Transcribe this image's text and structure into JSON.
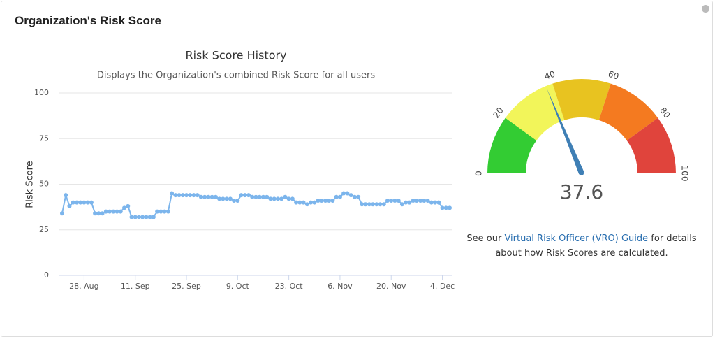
{
  "header": {
    "title": "Organization's Risk Score"
  },
  "chart_data": [
    {
      "type": "line",
      "title": "Risk Score History",
      "subtitle": "Displays the Organization's combined Risk Score for all users",
      "y_label": "Risk Score",
      "categories": [
        null,
        null,
        null,
        null,
        null,
        null,
        "28. Aug",
        null,
        null,
        null,
        null,
        null,
        null,
        null,
        null,
        null,
        null,
        null,
        null,
        null,
        "11. Sep",
        null,
        null,
        null,
        null,
        null,
        null,
        null,
        null,
        null,
        null,
        null,
        null,
        null,
        "25. Sep",
        null,
        null,
        null,
        null,
        null,
        null,
        null,
        null,
        null,
        null,
        null,
        null,
        null,
        "9. Oct",
        null,
        null,
        null,
        null,
        null,
        null,
        null,
        null,
        null,
        null,
        null,
        null,
        null,
        "23. Oct",
        null,
        null,
        null,
        null,
        null,
        null,
        null,
        null,
        null,
        null,
        null,
        null,
        null,
        "6. Nov",
        null,
        null,
        null,
        null,
        null,
        null,
        null,
        null,
        null,
        null,
        null,
        null,
        null,
        "20. Nov",
        null,
        null,
        null,
        null,
        null,
        null,
        null,
        null,
        null,
        null,
        null,
        null,
        null,
        "4. Dec",
        null,
        null
      ],
      "values": [
        34,
        44,
        38,
        40,
        40,
        40,
        40,
        40,
        40,
        34,
        34,
        34,
        35,
        35,
        35,
        35,
        35,
        37,
        38,
        32,
        32,
        32,
        32,
        32,
        32,
        32,
        35,
        35,
        35,
        35,
        45,
        44,
        44,
        44,
        44,
        44,
        44,
        44,
        43,
        43,
        43,
        43,
        43,
        42,
        42,
        42,
        42,
        41,
        41,
        44,
        44,
        44,
        43,
        43,
        43,
        43,
        43,
        42,
        42,
        42,
        42,
        43,
        42,
        42,
        40,
        40,
        40,
        39,
        40,
        40,
        41,
        41,
        41,
        41,
        41,
        43,
        43,
        45,
        45,
        44,
        43,
        43,
        39,
        39,
        39,
        39,
        39,
        39,
        39,
        41,
        41,
        41,
        41,
        39,
        40,
        40,
        41,
        41,
        41,
        41,
        41,
        40,
        40,
        40,
        37,
        37,
        37
      ],
      "color": "#7cb5ec",
      "ylim": [
        0,
        100
      ],
      "yticks": [
        0,
        25,
        50,
        75,
        100
      ],
      "grid": true
    },
    {
      "type": "gauge",
      "value": 37.6,
      "range": [
        0,
        100
      ],
      "ticks": [
        0,
        20,
        40,
        60,
        80,
        100
      ],
      "bands": [
        {
          "from": 0,
          "to": 20,
          "color": "#33cc33"
        },
        {
          "from": 20,
          "to": 40,
          "color": "#f2f55a"
        },
        {
          "from": 40,
          "to": 60,
          "color": "#e8c320"
        },
        {
          "from": 60,
          "to": 80,
          "color": "#f47a20"
        },
        {
          "from": 80,
          "to": 100,
          "color": "#e0443c"
        }
      ],
      "needle_color": "#3f7fb5"
    }
  ],
  "note": {
    "before": "See our ",
    "link": "Virtual Risk Officer (VRO) Guide",
    "after": " for details about how Risk Scores are calculated."
  }
}
